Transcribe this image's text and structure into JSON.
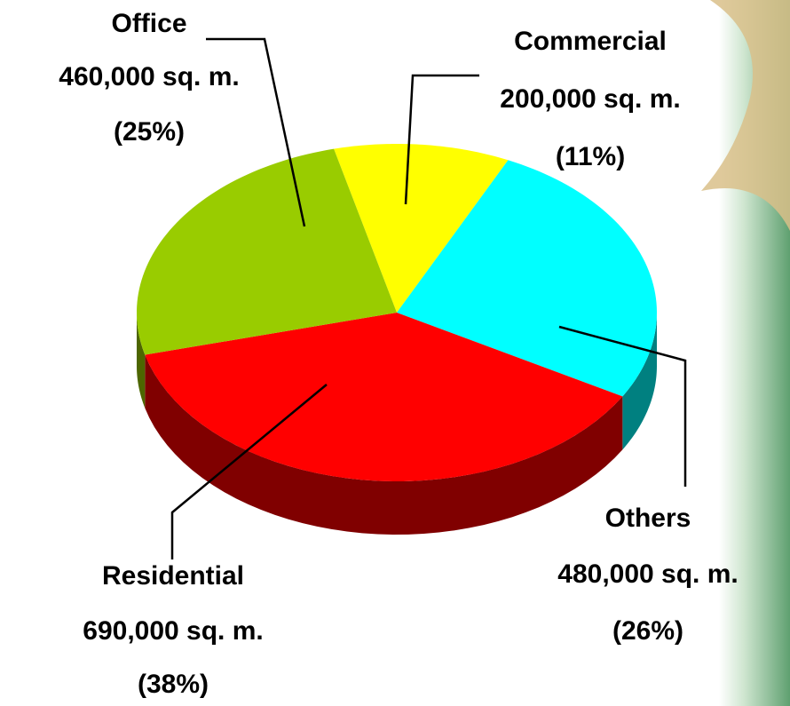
{
  "chart_data": {
    "type": "pie3d",
    "categories": [
      "Commercial",
      "Others",
      "Residential",
      "Office"
    ],
    "values": [
      200000,
      480000,
      690000,
      460000
    ],
    "value_labels": [
      "200,000 sq. m.",
      "480,000 sq. m.",
      "690,000 sq. m.",
      "460,000 sq. m."
    ],
    "percents": [
      11,
      26,
      38,
      25
    ],
    "percent_labels": [
      "(11%)",
      "(26%)",
      "(38%)",
      "(25%)"
    ],
    "colors": [
      "#ffff00",
      "#00ffff",
      "#ff0000",
      "#99cc00"
    ],
    "side_colors": [
      "#808000",
      "#008080",
      "#800000",
      "#4d6600"
    ]
  }
}
